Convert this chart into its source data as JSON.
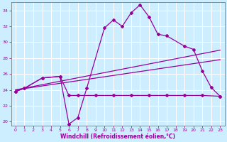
{
  "xlabel": "Windchill (Refroidissement éolien,°C)",
  "bg_color": "#cceeff",
  "line_color": "#990099",
  "xlim": [
    -0.5,
    23.5
  ],
  "ylim": [
    19.5,
    35.0
  ],
  "yticks": [
    20,
    22,
    24,
    26,
    28,
    30,
    32,
    34
  ],
  "xticks": [
    0,
    1,
    2,
    3,
    4,
    5,
    6,
    7,
    8,
    9,
    10,
    11,
    12,
    13,
    14,
    15,
    16,
    17,
    18,
    19,
    20,
    21,
    22,
    23
  ],
  "main_line": {
    "x": [
      0,
      1,
      3,
      5,
      6,
      7,
      8,
      10,
      11,
      12,
      13,
      14,
      15,
      16,
      17,
      19,
      20,
      21,
      22,
      23
    ],
    "y": [
      23.8,
      24.2,
      25.5,
      25.7,
      19.7,
      20.5,
      24.2,
      31.8,
      32.8,
      32.0,
      33.7,
      34.7,
      33.2,
      31.0,
      30.8,
      29.5,
      29.1,
      26.4,
      24.3,
      23.2
    ]
  },
  "flat_line": {
    "x": [
      0,
      1,
      3,
      5,
      6,
      7,
      9,
      11,
      13,
      15,
      17,
      19,
      21,
      23
    ],
    "y": [
      23.8,
      24.2,
      25.5,
      25.7,
      23.3,
      23.3,
      23.3,
      23.3,
      23.3,
      23.3,
      23.3,
      23.3,
      23.3,
      23.2
    ]
  },
  "trend1": {
    "x": [
      0,
      23
    ],
    "y": [
      24.0,
      29.0
    ]
  },
  "trend2": {
    "x": [
      0,
      23
    ],
    "y": [
      24.0,
      27.8
    ]
  }
}
